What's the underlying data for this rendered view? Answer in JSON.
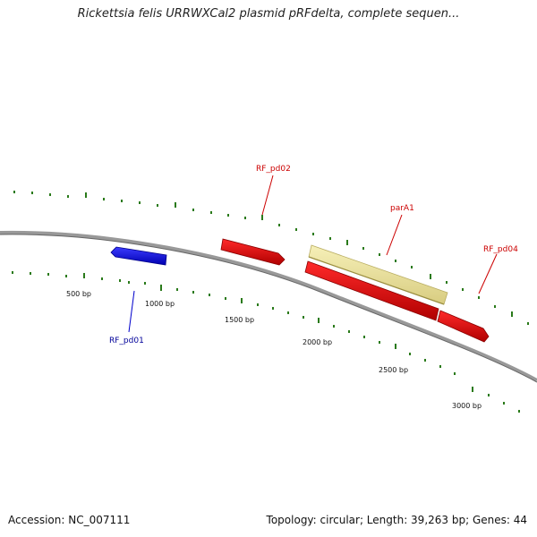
{
  "title": "Rickettsia felis URRWXCal2 plasmid pRFdelta, complete sequen...",
  "footer": {
    "accession": "Accession: NC_007111",
    "summary": "Topology: circular; Length: 39,263 bp; Genes: 44"
  },
  "map": {
    "bp_labels": [
      "500 bp",
      "1000 bp",
      "1500 bp",
      "2000 bp",
      "2500 bp",
      "3000 bp"
    ],
    "genes": [
      {
        "name": "RF_pd01",
        "color": "#0000ee",
        "label_color": "#000099"
      },
      {
        "name": "RF_pd02",
        "color": "#ee0000",
        "label_color": "#cc0000"
      },
      {
        "name": "parA1",
        "color": "#f0e8a0",
        "label_color": "#cc0000"
      },
      {
        "name": "RF_pd04",
        "color": "#ee0000",
        "label_color": "#cc0000"
      }
    ],
    "backbone_color": "#888888",
    "tick_color": "#2a7a1a"
  }
}
